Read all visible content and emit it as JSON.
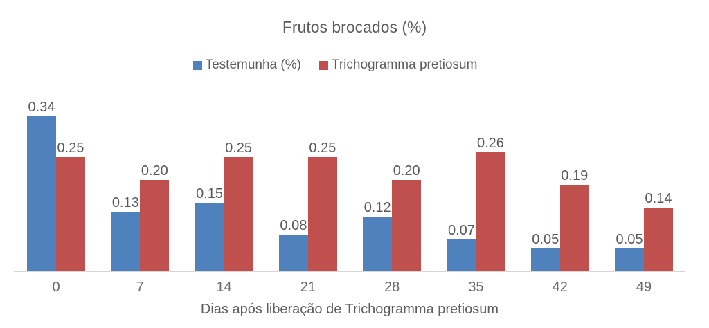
{
  "chart_data": {
    "type": "bar",
    "title": "Frutos brocados (%)",
    "xlabel": "Dias após liberação de Trichogramma pretiosum",
    "ylabel": "",
    "categories": [
      "0",
      "7",
      "14",
      "21",
      "28",
      "35",
      "42",
      "49"
    ],
    "series": [
      {
        "name": "Testemunha (%)",
        "color": "#4F81BD",
        "values": [
          0.34,
          0.13,
          0.15,
          0.08,
          0.12,
          0.07,
          0.05,
          0.05
        ]
      },
      {
        "name": "Trichogramma pretiosum",
        "color": "#C0504D",
        "values": [
          0.25,
          0.2,
          0.25,
          0.25,
          0.2,
          0.26,
          0.19,
          0.14
        ]
      }
    ],
    "data_labels": true,
    "legend_position": "top",
    "grid": false,
    "ylim": [
      0,
      0.4
    ],
    "axis_line_color": "#d6d6d6",
    "text_color": "#595959"
  }
}
